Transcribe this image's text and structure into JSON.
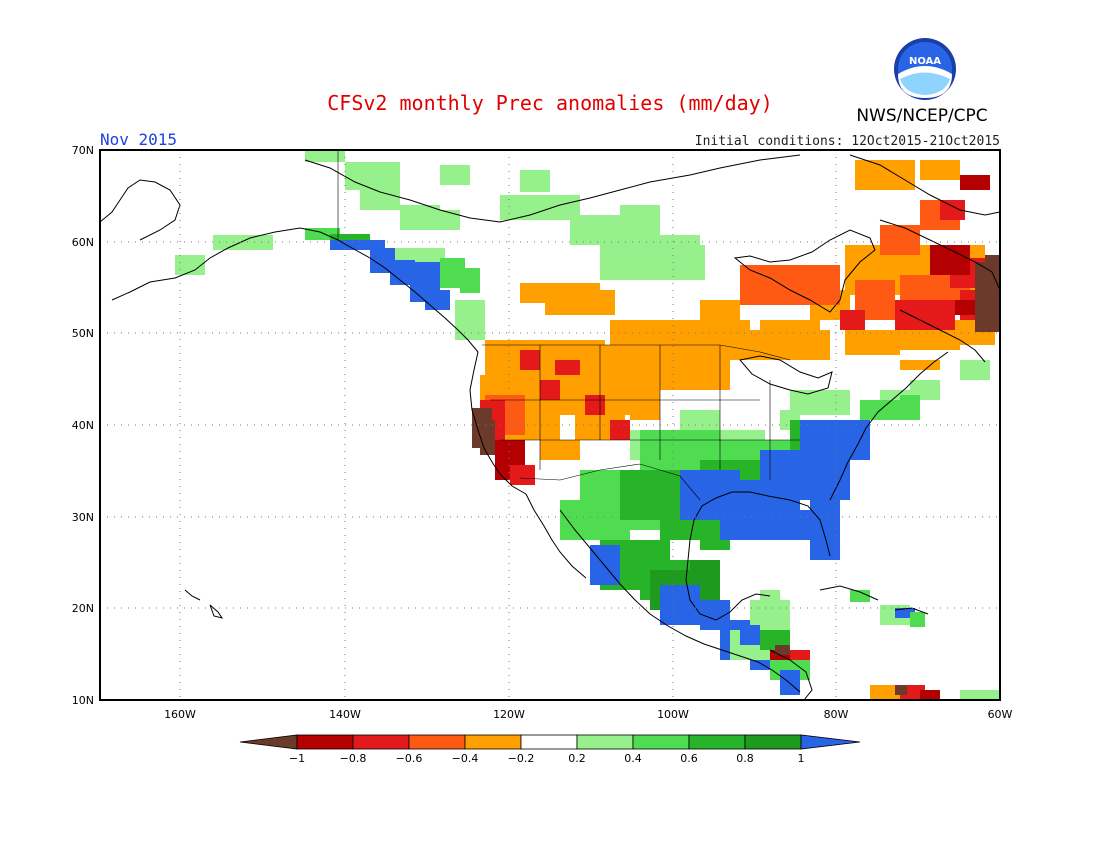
{
  "header": {
    "title": "CFSv2 monthly Prec anomalies (mm/day)",
    "agency": "NWS/NCEP/CPC",
    "month": "Nov 2015",
    "initial_conditions": "Initial conditions: 12Oct2015-21Oct2015",
    "logo_text": "NOAA"
  },
  "colors": {
    "title": "#e00000",
    "month": "#2040e0",
    "brown": "#6b3a2a",
    "dark_red": "#b40000",
    "red": "#e41a1a",
    "orange_red": "#ff5a14",
    "orange": "#ff9f00",
    "white": "#ffffff",
    "light_green": "#96f08c",
    "green": "#50dc50",
    "mid_green": "#28b428",
    "dark_green": "#1e9b1e",
    "blue": "#2864e6"
  },
  "map": {
    "lat_labels": [
      "70N",
      "60N",
      "50N",
      "40N",
      "30N",
      "20N",
      "10N"
    ],
    "lon_labels": [
      "160W",
      "140W",
      "120W",
      "100W",
      "80W",
      "60W"
    ]
  },
  "legend": {
    "tick_labels": [
      "−1",
      "−0.8",
      "−0.6",
      "−0.4",
      "−0.2",
      "0.2",
      "0.4",
      "0.6",
      "0.8",
      "1"
    ]
  }
}
